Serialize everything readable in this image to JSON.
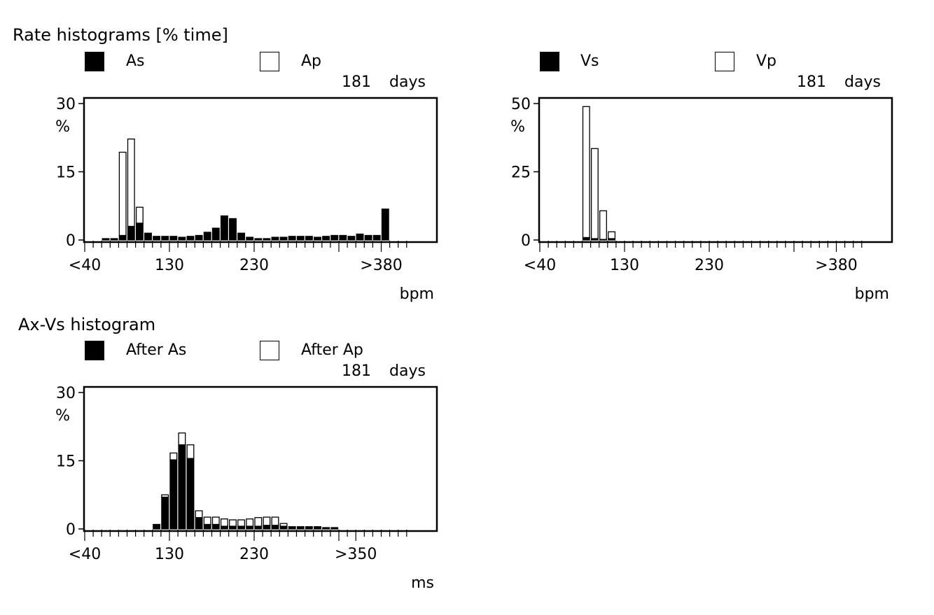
{
  "rate_section": {
    "title": "Rate histograms [% time]"
  },
  "av_section": {
    "title": "Ax-Vs histogram"
  },
  "chart_data": [
    {
      "id": "atrial",
      "type": "bar",
      "stacked": true,
      "legend": [
        {
          "label": "As",
          "fill": "#000000"
        },
        {
          "label": "Ap",
          "fill": "#ffffff"
        }
      ],
      "duration_value": "181",
      "duration_unit": "days",
      "y_unit": "%",
      "x_unit": "bpm",
      "y_ticks": [
        {
          "value": 0,
          "label": "0"
        },
        {
          "value": 15,
          "label": "15"
        },
        {
          "value": 30,
          "label": "30"
        }
      ],
      "ylim": [
        0,
        30
      ],
      "x_ticks": [
        {
          "bin": 0,
          "label": "<40"
        },
        {
          "bin": 10,
          "label": "130"
        },
        {
          "bin": 20,
          "label": "230"
        },
        {
          "bin": 35,
          "label": ">380"
        }
      ],
      "bin_count": 38,
      "series": [
        {
          "name": "As",
          "fill": "#000000",
          "values": [
            0,
            0,
            0.3,
            0.3,
            1,
            3,
            3.7,
            1.5,
            0.8,
            0.8,
            0.8,
            0.6,
            0.8,
            1,
            1.7,
            2.6,
            5.3,
            4.7,
            1.5,
            0.6,
            0.3,
            0.3,
            0.6,
            0.6,
            0.8,
            0.8,
            0.8,
            0.6,
            0.8,
            1,
            1,
            0.8,
            1.3,
            1,
            1,
            6.8,
            0,
            0
          ]
        },
        {
          "name": "Ap",
          "fill": "#ffffff",
          "values": [
            0,
            0,
            0,
            0,
            18.3,
            19.2,
            3.5,
            0,
            0,
            0,
            0,
            0,
            0,
            0,
            0,
            0,
            0,
            0,
            0,
            0,
            0,
            0,
            0,
            0,
            0,
            0,
            0,
            0,
            0,
            0,
            0,
            0,
            0,
            0,
            0,
            0,
            0,
            0
          ]
        }
      ]
    },
    {
      "id": "ventricular",
      "type": "bar",
      "stacked": true,
      "legend": [
        {
          "label": "Vs",
          "fill": "#000000"
        },
        {
          "label": "Vp",
          "fill": "#ffffff"
        }
      ],
      "duration_value": "181",
      "duration_unit": "days",
      "y_unit": "%",
      "x_unit": "bpm",
      "y_ticks": [
        {
          "value": 0,
          "label": "0"
        },
        {
          "value": 25,
          "label": "25"
        },
        {
          "value": 50,
          "label": "50"
        }
      ],
      "ylim": [
        0,
        50
      ],
      "x_ticks": [
        {
          "bin": 0,
          "label": "<40"
        },
        {
          "bin": 10,
          "label": "130"
        },
        {
          "bin": 20,
          "label": "230"
        },
        {
          "bin": 35,
          "label": ">380"
        }
      ],
      "bin_count": 38,
      "series": [
        {
          "name": "Vs",
          "fill": "#000000",
          "values": [
            0,
            0,
            0,
            0,
            0,
            0.9,
            0.5,
            0.2,
            0.5,
            0,
            0,
            0,
            0,
            0,
            0,
            0,
            0,
            0,
            0,
            0,
            0,
            0,
            0,
            0,
            0,
            0,
            0,
            0,
            0,
            0,
            0,
            0,
            0,
            0,
            0,
            0,
            0,
            0
          ]
        },
        {
          "name": "Vp",
          "fill": "#ffffff",
          "values": [
            0,
            0,
            0,
            0,
            0,
            48,
            33,
            10.5,
            2.5,
            0,
            0,
            0,
            0,
            0,
            0,
            0,
            0,
            0,
            0,
            0,
            0,
            0,
            0,
            0,
            0,
            0,
            0,
            0,
            0,
            0,
            0,
            0,
            0,
            0,
            0,
            0,
            0,
            0
          ]
        }
      ]
    },
    {
      "id": "av",
      "type": "bar",
      "stacked": true,
      "legend": [
        {
          "label": "After As",
          "fill": "#000000"
        },
        {
          "label": "After Ap",
          "fill": "#ffffff"
        }
      ],
      "duration_value": "181",
      "duration_unit": "days",
      "y_unit": "%",
      "x_unit": "ms",
      "y_ticks": [
        {
          "value": 0,
          "label": "0"
        },
        {
          "value": 15,
          "label": "15"
        },
        {
          "value": 30,
          "label": "30"
        }
      ],
      "ylim": [
        0,
        30
      ],
      "x_ticks": [
        {
          "bin": 0,
          "label": "<40"
        },
        {
          "bin": 10,
          "label": "130"
        },
        {
          "bin": 20,
          "label": "230"
        },
        {
          "bin": 32,
          "label": ">350"
        }
      ],
      "bin_count": 38,
      "series": [
        {
          "name": "After As",
          "fill": "#000000",
          "values": [
            0,
            0,
            0,
            0,
            0,
            0,
            0,
            0,
            1,
            7,
            15.2,
            18.5,
            15.5,
            2.5,
            1,
            1,
            0.6,
            0.6,
            0.6,
            0.6,
            0.6,
            0.8,
            0.8,
            0.6,
            0.5,
            0.5,
            0.5,
            0.5,
            0.3,
            0.3,
            0,
            0,
            0,
            0,
            0,
            0,
            0,
            0
          ]
        },
        {
          "name": "After Ap",
          "fill": "#ffffff",
          "values": [
            0,
            0,
            0,
            0,
            0,
            0,
            0,
            0,
            0,
            0.5,
            1.5,
            2.6,
            3,
            1.5,
            1.6,
            1.6,
            1.6,
            1.4,
            1.4,
            1.6,
            1.9,
            1.8,
            1.8,
            0.6,
            0,
            0,
            0,
            0,
            0,
            0,
            0,
            0,
            0,
            0,
            0,
            0,
            0,
            0
          ]
        }
      ]
    }
  ]
}
